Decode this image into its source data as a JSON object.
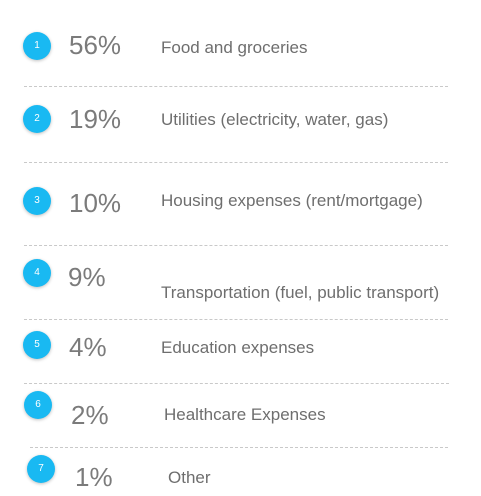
{
  "items": [
    {
      "number": "1",
      "percent": "56%",
      "label": "Food and groceries"
    },
    {
      "number": "2",
      "percent": "19%",
      "label": "Utilities (electricity, water, gas)"
    },
    {
      "number": "3",
      "percent": "10%",
      "label": "Housing expenses (rent/mortgage)"
    },
    {
      "number": "4",
      "percent": "9%",
      "label": "Transportation (fuel, public transport)"
    },
    {
      "number": "5",
      "percent": "4%",
      "label": "Education expenses"
    },
    {
      "number": "6",
      "percent": "2%",
      "label": "Healthcare Expenses"
    },
    {
      "number": "7",
      "percent": "1%",
      "label": "Other"
    }
  ],
  "colors": {
    "badge": "#19b9f2",
    "percent_text": "#7b7b7b",
    "label_text": "#6e6e6e",
    "divider": "#c9c9c9",
    "background": "#ffffff"
  }
}
